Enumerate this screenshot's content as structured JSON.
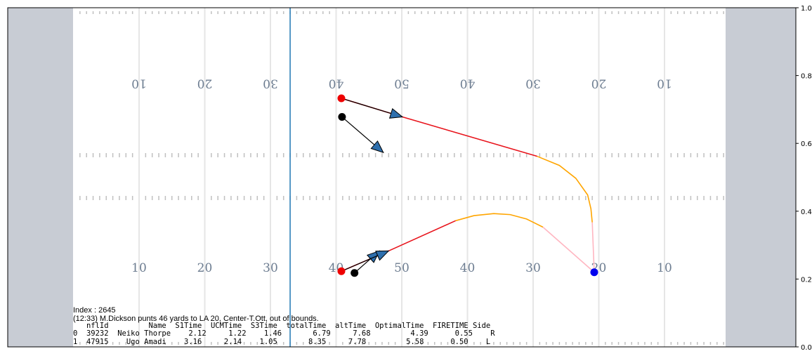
{
  "chart_data": {
    "type": "scatter",
    "title": "",
    "xlabel": "",
    "ylabel": "",
    "xlim": [
      0,
      120
    ],
    "ylim": [
      0,
      1
    ],
    "y_ticks": [
      "0.0",
      "0.2",
      "0.4",
      "0.6",
      "0.8",
      "1.0"
    ],
    "y_tick_values": [
      0,
      0.2,
      0.4,
      0.6,
      0.8,
      1.0
    ],
    "y_axis_side": "right",
    "grid": false,
    "line_of_scrimmage_x": 43,
    "yard_lines_x": [
      20,
      30,
      40,
      50,
      60,
      70,
      80,
      90,
      100
    ],
    "yard_numbers_bottom": [
      "10",
      "20",
      "30",
      "40",
      "50",
      "40",
      "30",
      "20",
      "10"
    ],
    "yard_numbers_top": [
      "10",
      "20",
      "30",
      "40",
      "50",
      "40",
      "30",
      "20",
      "10"
    ],
    "players": [
      {
        "x": 50.8,
        "y": 0.733,
        "color": "red"
      },
      {
        "x": 50.8,
        "y": 0.223,
        "color": "red"
      },
      {
        "x": 50.9,
        "y": 0.678,
        "color": "black"
      },
      {
        "x": 52.8,
        "y": 0.218,
        "color": "black"
      },
      {
        "x": 89.3,
        "y": 0.22,
        "color": "blue"
      }
    ],
    "arrows": [
      {
        "x0": 50.8,
        "y0": 0.733,
        "x1": 60.1,
        "y1": 0.678
      },
      {
        "x0": 50.9,
        "y0": 0.678,
        "x1": 57.2,
        "y1": 0.573
      },
      {
        "x0": 52.8,
        "y0": 0.218,
        "x1": 56.6,
        "y1": 0.283
      },
      {
        "x0": 50.8,
        "y0": 0.223,
        "x1": 58.0,
        "y1": 0.283
      }
    ],
    "paths": [
      {
        "name": "red-upper",
        "color": "#e8141c",
        "points": [
          [
            50.8,
            0.733
          ],
          [
            60.1,
            0.678
          ],
          [
            80.6,
            0.562
          ]
        ]
      },
      {
        "name": "orange-upper",
        "color": "#ffa500",
        "points": [
          [
            80.6,
            0.562
          ],
          [
            84.0,
            0.535
          ],
          [
            86.5,
            0.497
          ],
          [
            88.3,
            0.448
          ],
          [
            88.8,
            0.407
          ],
          [
            89.0,
            0.367
          ]
        ]
      },
      {
        "name": "pink-upper",
        "color": "#ffb6c1",
        "points": [
          [
            89.0,
            0.367
          ],
          [
            89.3,
            0.22
          ]
        ]
      },
      {
        "name": "red-lower",
        "color": "#e8141c",
        "points": [
          [
            50.8,
            0.223
          ],
          [
            58.0,
            0.283
          ],
          [
            68.2,
            0.372
          ]
        ]
      },
      {
        "name": "orange-lower",
        "color": "#ffa500",
        "points": [
          [
            68.2,
            0.372
          ],
          [
            71.0,
            0.387
          ],
          [
            74.0,
            0.393
          ],
          [
            76.5,
            0.39
          ],
          [
            79.0,
            0.377
          ],
          [
            81.5,
            0.353
          ]
        ]
      },
      {
        "name": "pink-lower",
        "color": "#ffb6c1",
        "points": [
          [
            81.5,
            0.353
          ],
          [
            89.3,
            0.22
          ]
        ]
      }
    ],
    "annotation": {
      "index_line": "Index : 2645",
      "play_description": "(12:33) M.Dickson punts 46 yards to LA 20, Center-T.Ott, out of bounds.",
      "table_header": "   nflId         Name  S1Time  UCMTime  S3Time  totalTime  altTime  OptimalTime  FIRETIME Side",
      "table_rows": [
        "0  39232  Neiko Thorpe    2.12     1.22    1.46       6.79     7.68         4.39      0.55    R",
        "1  47915    Ugo Amadi    3.16     2.14    1.05       8.35     7.78         5.58      0.50    L"
      ]
    }
  }
}
